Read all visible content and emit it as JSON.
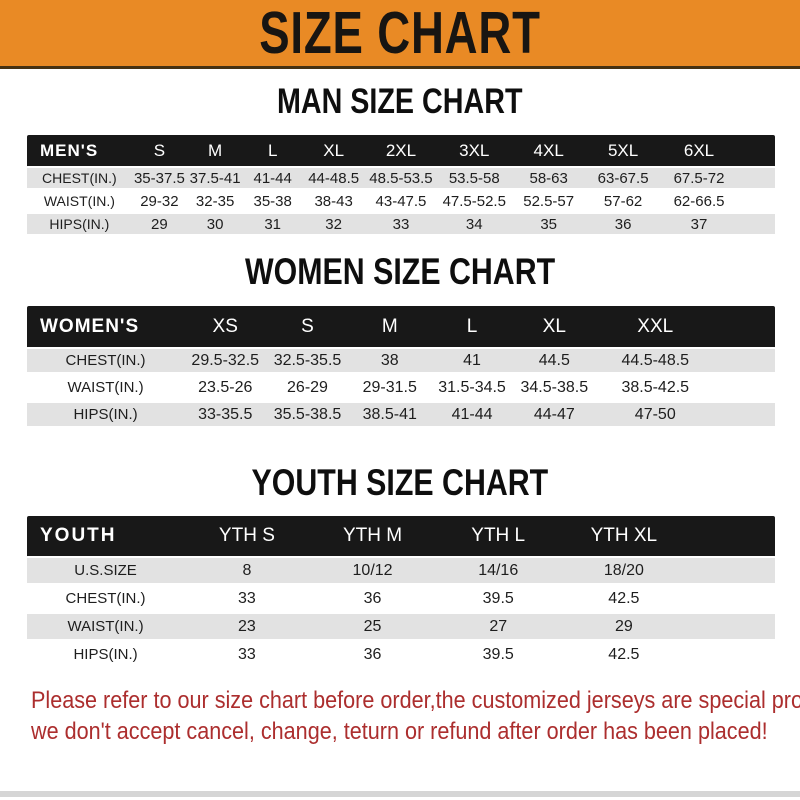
{
  "banner": {
    "title": "SIZE CHART"
  },
  "sections": [
    {
      "title": "MAN SIZE CHART",
      "header_label": "MEN'S",
      "columns": [
        "S",
        "M",
        "L",
        "XL",
        "2XL",
        "3XL",
        "4XL",
        "5XL",
        "6XL"
      ],
      "rows": [
        {
          "label": "CHEST(IN.)",
          "values": [
            "35-37.5",
            "37.5-41",
            "41-44",
            "44-48.5",
            "48.5-53.5",
            "53.5-58",
            "58-63",
            "63-67.5",
            "67.5-72"
          ]
        },
        {
          "label": "WAIST(IN.)",
          "values": [
            "29-32",
            "32-35",
            "35-38",
            "38-43",
            "43-47.5",
            "47.5-52.5",
            "52.5-57",
            "57-62",
            "62-66.5"
          ]
        },
        {
          "label": "HIPS(IN.)",
          "values": [
            "29",
            "30",
            "31",
            "32",
            "33",
            "34",
            "35",
            "36",
            "37"
          ]
        }
      ]
    },
    {
      "title": "WOMEN SIZE CHART",
      "header_label": "WOMEN'S",
      "columns": [
        "XS",
        "S",
        "M",
        "L",
        "XL",
        "XXL"
      ],
      "rows": [
        {
          "label": "CHEST(IN.)",
          "values": [
            "29.5-32.5",
            "32.5-35.5",
            "38",
            "41",
            "44.5",
            "44.5-48.5"
          ]
        },
        {
          "label": "WAIST(IN.)",
          "values": [
            "23.5-26",
            "26-29",
            "29-31.5",
            "31.5-34.5",
            "34.5-38.5",
            "38.5-42.5"
          ]
        },
        {
          "label": "HIPS(IN.)",
          "values": [
            "33-35.5",
            "35.5-38.5",
            "38.5-41",
            "41-44",
            "44-47",
            "47-50"
          ]
        }
      ]
    },
    {
      "title": "YOUTH SIZE CHART",
      "header_label": "YOUTH",
      "columns": [
        "YTH S",
        "YTH M",
        "YTH L",
        "YTH XL"
      ],
      "rows": [
        {
          "label": "U.S.SIZE",
          "values": [
            "8",
            "10/12",
            "14/16",
            "18/20"
          ]
        },
        {
          "label": "CHEST(IN.)",
          "values": [
            "33",
            "36",
            "39.5",
            "42.5"
          ]
        },
        {
          "label": "WAIST(IN.)",
          "values": [
            "23",
            "25",
            "27",
            "29"
          ]
        },
        {
          "label": "HIPS(IN.)",
          "values": [
            "33",
            "36",
            "39.5",
            "42.5"
          ]
        }
      ]
    }
  ],
  "footer": {
    "line1": "Please refer to our size chart before order,the customized jerseys are special products,",
    "line2": "we don't accept cancel, change, teturn or refund after order has been placed!"
  },
  "colors": {
    "banner_bg": "#E98A25",
    "header_bar_bg": "#181818",
    "row_alt_bg": "#E2E2E2",
    "footer_text": "#AC2E2E"
  }
}
